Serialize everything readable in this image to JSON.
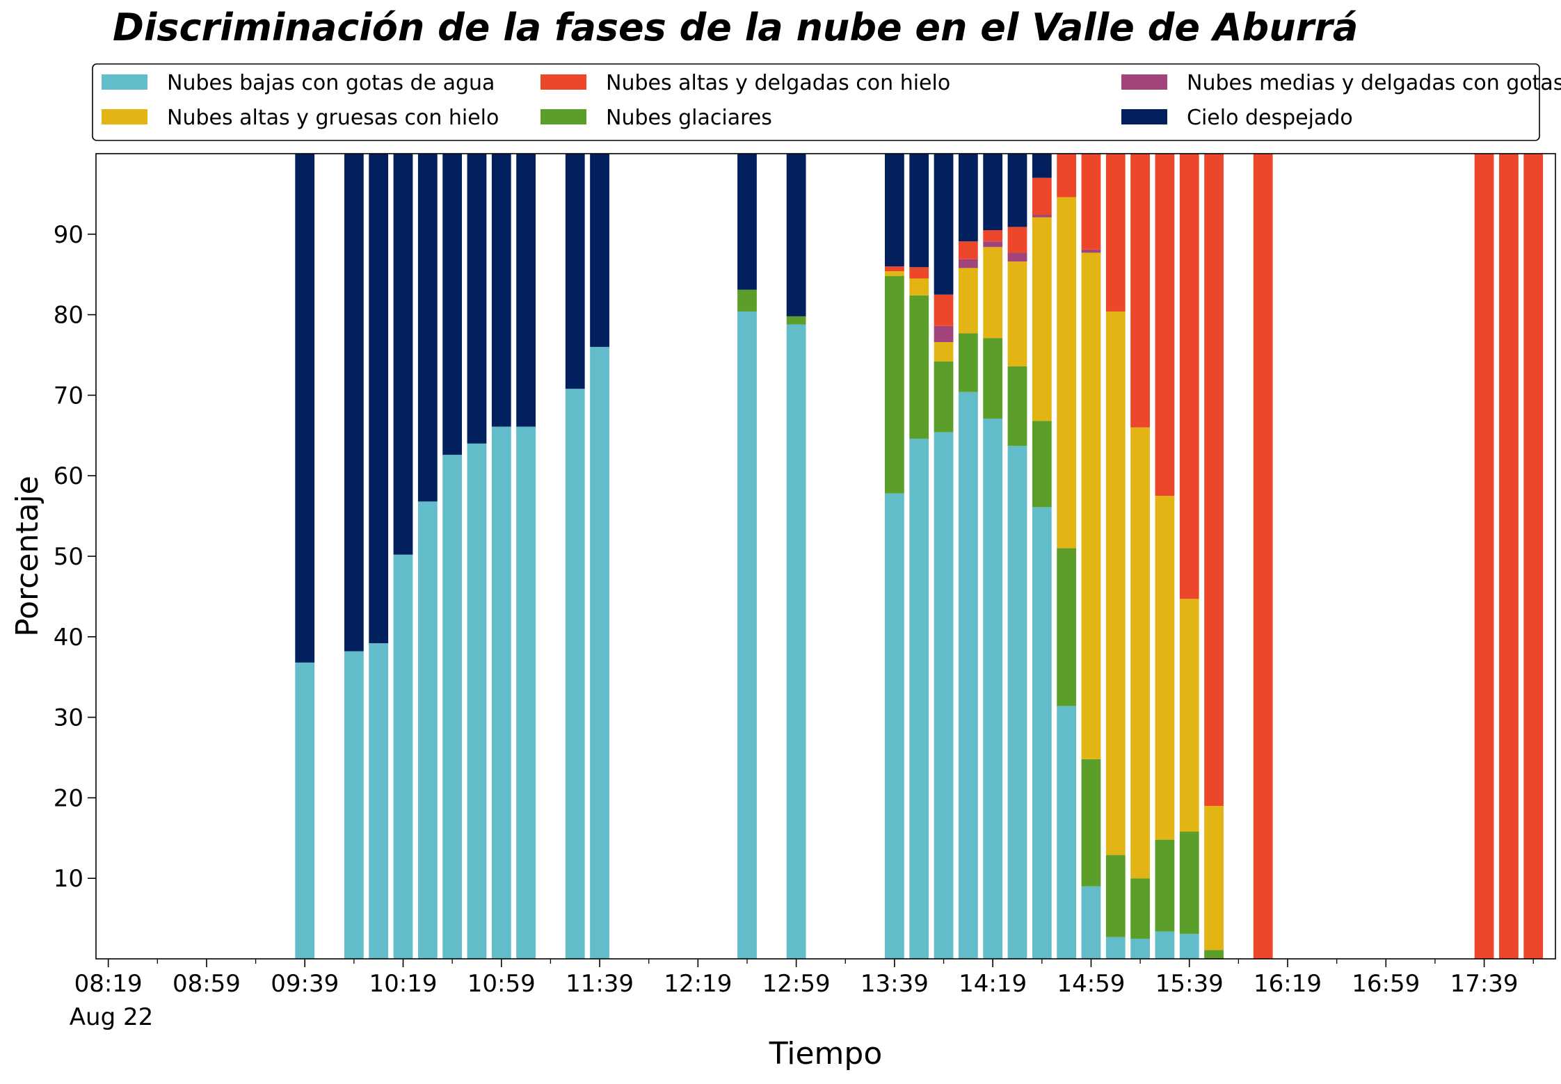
{
  "chart_data": {
    "type": "bar",
    "stacked": true,
    "title": "Discriminación de la fases de la nube en el Valle de Aburrá",
    "xlabel": "Tiempo",
    "ylabel": "Porcentaje",
    "ylim": [
      0,
      100
    ],
    "yticks": [
      10,
      20,
      30,
      40,
      50,
      60,
      70,
      80,
      90
    ],
    "xlim_minutes": [
      494,
      1088
    ],
    "xticks": [
      {
        "label": "08:19",
        "min": 499
      },
      {
        "label": "08:59",
        "min": 539
      },
      {
        "label": "09:39",
        "min": 579
      },
      {
        "label": "10:19",
        "min": 619
      },
      {
        "label": "10:59",
        "min": 659
      },
      {
        "label": "11:39",
        "min": 699
      },
      {
        "label": "12:19",
        "min": 739
      },
      {
        "label": "12:59",
        "min": 779
      },
      {
        "label": "13:39",
        "min": 819
      },
      {
        "label": "14:19",
        "min": 859
      },
      {
        "label": "14:59",
        "min": 899
      },
      {
        "label": "15:39",
        "min": 939
      },
      {
        "label": "16:19",
        "min": 979
      },
      {
        "label": "16:59",
        "min": 1019
      },
      {
        "label": "17:39",
        "min": 1059
      }
    ],
    "minor_ticks": [
      519,
      559,
      599,
      639,
      679,
      719,
      759,
      799,
      839,
      879,
      919,
      959,
      999,
      1039,
      1079
    ],
    "date_label": "Aug 22",
    "grid": false,
    "legend_position": "top",
    "bar_width_minutes": 9,
    "series": [
      {
        "name": "Nubes bajas con gotas de agua",
        "color": "#63bcc9"
      },
      {
        "name": "Nubes glaciares",
        "color": "#5b9e2a"
      },
      {
        "name": "Nubes altas y gruesas con hielo",
        "color": "#e3b514"
      },
      {
        "name": "Nubes medias y delgadas con gotas de agua",
        "color": "#a2437a"
      },
      {
        "name": "Nubes altas y delgadas con hielo",
        "color": "#ec472b"
      },
      {
        "name": "Cielo despejado",
        "color": "#021f5e"
      }
    ],
    "legend_order": [
      0,
      2,
      4,
      1,
      3,
      5
    ],
    "times": [
      "09:39",
      "09:59",
      "10:09",
      "10:19",
      "10:29",
      "10:39",
      "10:49",
      "10:59",
      "11:09",
      "11:29",
      "11:39",
      "12:39",
      "12:59",
      "13:39",
      "13:49",
      "13:59",
      "14:09",
      "14:19",
      "14:29",
      "14:39",
      "14:49",
      "14:59",
      "15:09",
      "15:19",
      "15:29",
      "15:39",
      "15:49",
      "16:09",
      "17:39",
      "17:49",
      "17:59"
    ],
    "minutes": [
      579,
      599,
      609,
      619,
      629,
      639,
      649,
      659,
      669,
      689,
      699,
      759,
      779,
      819,
      829,
      839,
      849,
      859,
      869,
      879,
      889,
      899,
      909,
      919,
      929,
      939,
      949,
      969,
      1059,
      1069,
      1079
    ],
    "values": [
      [
        36.8,
        0,
        0,
        0,
        0,
        63.2
      ],
      [
        38.2,
        0,
        0,
        0,
        0,
        61.8
      ],
      [
        39.2,
        0,
        0,
        0,
        0,
        60.8
      ],
      [
        50.2,
        0,
        0,
        0,
        0,
        49.8
      ],
      [
        56.8,
        0,
        0,
        0,
        0,
        43.2
      ],
      [
        62.6,
        0,
        0,
        0,
        0,
        37.4
      ],
      [
        64.0,
        0,
        0,
        0,
        0,
        36.0
      ],
      [
        66.1,
        0,
        0,
        0,
        0,
        33.9
      ],
      [
        66.1,
        0,
        0,
        0,
        0,
        33.9
      ],
      [
        70.8,
        0,
        0,
        0,
        0,
        29.2
      ],
      [
        76.0,
        0,
        0,
        0,
        0,
        24.0
      ],
      [
        80.4,
        2.7,
        0,
        0,
        0,
        16.9
      ],
      [
        78.8,
        1.0,
        0,
        0,
        0,
        20.2
      ],
      [
        57.8,
        27.0,
        0.6,
        0,
        0.6,
        14.0
      ],
      [
        64.6,
        17.8,
        2.1,
        0,
        1.4,
        14.1
      ],
      [
        65.4,
        8.8,
        2.4,
        2.0,
        3.9,
        17.5
      ],
      [
        70.4,
        7.3,
        8.1,
        1.1,
        2.2,
        10.9
      ],
      [
        67.1,
        10.0,
        11.3,
        0.7,
        1.4,
        9.5
      ],
      [
        63.7,
        9.9,
        13.0,
        1.1,
        3.2,
        9.1
      ],
      [
        56.1,
        10.7,
        25.3,
        0.3,
        4.6,
        3.0
      ],
      [
        31.4,
        19.6,
        43.6,
        0,
        5.4,
        0
      ],
      [
        9.0,
        15.8,
        62.9,
        0.4,
        11.9,
        0
      ],
      [
        2.7,
        10.2,
        67.5,
        0,
        19.6,
        0
      ],
      [
        2.5,
        7.5,
        56.0,
        0,
        34.0,
        0
      ],
      [
        3.4,
        11.4,
        42.7,
        0,
        42.5,
        0
      ],
      [
        3.1,
        12.7,
        28.9,
        0,
        55.3,
        0
      ],
      [
        0,
        1.1,
        17.9,
        0,
        81.0,
        0
      ],
      [
        0,
        0,
        0,
        0,
        100,
        0
      ],
      [
        0,
        0,
        0,
        0,
        100,
        0
      ],
      [
        0,
        0,
        0,
        0,
        100,
        0
      ],
      [
        0,
        0,
        0,
        0,
        100,
        0
      ]
    ]
  }
}
